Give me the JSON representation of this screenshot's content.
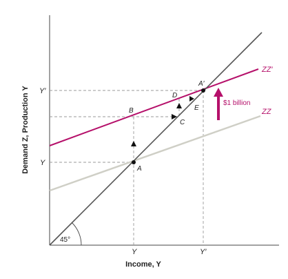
{
  "axes": {
    "y_label": "Demand Z, Production Y",
    "x_label": "Income, Y",
    "y_ticks": [
      "Y′",
      "Y"
    ],
    "x_ticks": [
      "Y",
      "Y′"
    ]
  },
  "lines": {
    "zz_new": "ZZ′",
    "zz_old": "ZZ",
    "angle": "45°"
  },
  "points": {
    "A": "A",
    "A_prime": "A′",
    "B": "B",
    "C": "C",
    "D": "D",
    "E": "E"
  },
  "annotation": {
    "shift": "$1 billion"
  },
  "colors": {
    "zz_new": "#b5106a",
    "zz_old": "#cfcfc6",
    "diagonal": "#555555",
    "axis": "#444444"
  }
}
